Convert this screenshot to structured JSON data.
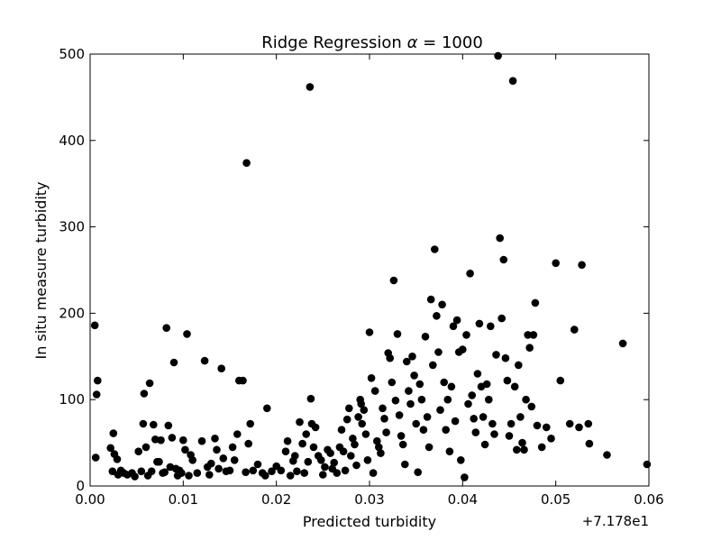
{
  "chart_data": {
    "type": "scatter",
    "title": "Ridge Regression α = 1000",
    "title_prefix": "Ridge Regression ",
    "title_alpha": "α",
    "title_suffix": " = 1000",
    "xlabel": "Predicted turbidity",
    "ylabel": "In situ measure turbidity",
    "x_offset_label": "+7.178e1",
    "xlim": [
      0.0,
      0.06
    ],
    "ylim": [
      0,
      500
    ],
    "x_ticks": [
      0.0,
      0.01,
      0.02,
      0.03,
      0.04,
      0.05,
      0.06
    ],
    "x_tick_labels": [
      "0.00",
      "0.01",
      "0.02",
      "0.03",
      "0.04",
      "0.05",
      "0.06"
    ],
    "y_ticks": [
      0,
      100,
      200,
      300,
      400,
      500
    ],
    "y_tick_labels": [
      "0",
      "100",
      "200",
      "300",
      "400",
      "500"
    ],
    "grid": false,
    "marker_color": "#000000",
    "points": [
      [
        0.0005,
        186
      ],
      [
        0.0008,
        122
      ],
      [
        0.0007,
        106
      ],
      [
        0.0006,
        33
      ],
      [
        0.0022,
        44
      ],
      [
        0.0025,
        61
      ],
      [
        0.0026,
        37
      ],
      [
        0.0029,
        31
      ],
      [
        0.0024,
        17
      ],
      [
        0.003,
        13
      ],
      [
        0.0033,
        18
      ],
      [
        0.0036,
        15
      ],
      [
        0.004,
        13
      ],
      [
        0.0045,
        15
      ],
      [
        0.0048,
        11
      ],
      [
        0.0052,
        40
      ],
      [
        0.0055,
        17
      ],
      [
        0.0057,
        72
      ],
      [
        0.0058,
        107
      ],
      [
        0.006,
        45
      ],
      [
        0.0062,
        12
      ],
      [
        0.0064,
        119
      ],
      [
        0.0066,
        17
      ],
      [
        0.0068,
        71
      ],
      [
        0.007,
        54
      ],
      [
        0.0072,
        28
      ],
      [
        0.0074,
        28
      ],
      [
        0.0076,
        53
      ],
      [
        0.0078,
        15
      ],
      [
        0.008,
        16
      ],
      [
        0.0082,
        183
      ],
      [
        0.0084,
        70
      ],
      [
        0.0086,
        22
      ],
      [
        0.0088,
        56
      ],
      [
        0.009,
        143
      ],
      [
        0.0092,
        20
      ],
      [
        0.0094,
        12
      ],
      [
        0.0096,
        18
      ],
      [
        0.0098,
        15
      ],
      [
        0.01,
        53
      ],
      [
        0.0102,
        42
      ],
      [
        0.0104,
        176
      ],
      [
        0.0106,
        12
      ],
      [
        0.0108,
        36
      ],
      [
        0.011,
        30
      ],
      [
        0.0115,
        15
      ],
      [
        0.012,
        52
      ],
      [
        0.0123,
        145
      ],
      [
        0.0126,
        22
      ],
      [
        0.0128,
        13
      ],
      [
        0.013,
        26
      ],
      [
        0.0134,
        55
      ],
      [
        0.0136,
        42
      ],
      [
        0.0138,
        20
      ],
      [
        0.0141,
        136
      ],
      [
        0.0143,
        32
      ],
      [
        0.0146,
        17
      ],
      [
        0.015,
        18
      ],
      [
        0.0153,
        45
      ],
      [
        0.0155,
        30
      ],
      [
        0.0158,
        60
      ],
      [
        0.016,
        122
      ],
      [
        0.0164,
        122
      ],
      [
        0.0167,
        16
      ],
      [
        0.0168,
        374
      ],
      [
        0.017,
        49
      ],
      [
        0.0172,
        72
      ],
      [
        0.0175,
        18
      ],
      [
        0.018,
        25
      ],
      [
        0.0185,
        15
      ],
      [
        0.0188,
        12
      ],
      [
        0.019,
        90
      ],
      [
        0.0195,
        17
      ],
      [
        0.02,
        23
      ],
      [
        0.0205,
        18
      ],
      [
        0.021,
        40
      ],
      [
        0.0212,
        52
      ],
      [
        0.0215,
        12
      ],
      [
        0.0218,
        29
      ],
      [
        0.022,
        35
      ],
      [
        0.0222,
        17
      ],
      [
        0.0225,
        74
      ],
      [
        0.0228,
        49
      ],
      [
        0.023,
        15
      ],
      [
        0.0232,
        60
      ],
      [
        0.0234,
        28
      ],
      [
        0.0236,
        462
      ],
      [
        0.0237,
        101
      ],
      [
        0.0238,
        72
      ],
      [
        0.024,
        45
      ],
      [
        0.0242,
        68
      ],
      [
        0.0245,
        35
      ],
      [
        0.0248,
        30
      ],
      [
        0.025,
        13
      ],
      [
        0.0252,
        22
      ],
      [
        0.0255,
        42
      ],
      [
        0.0258,
        38
      ],
      [
        0.026,
        20
      ],
      [
        0.0262,
        27
      ],
      [
        0.0265,
        15
      ],
      [
        0.0268,
        45
      ],
      [
        0.027,
        65
      ],
      [
        0.0272,
        40
      ],
      [
        0.0274,
        18
      ],
      [
        0.0276,
        77
      ],
      [
        0.0278,
        90
      ],
      [
        0.028,
        35
      ],
      [
        0.0282,
        55
      ],
      [
        0.0284,
        48
      ],
      [
        0.0286,
        24
      ],
      [
        0.0288,
        80
      ],
      [
        0.029,
        100
      ],
      [
        0.0291,
        95
      ],
      [
        0.0292,
        72
      ],
      [
        0.0294,
        88
      ],
      [
        0.0296,
        60
      ],
      [
        0.0298,
        30
      ],
      [
        0.03,
        178
      ],
      [
        0.0302,
        125
      ],
      [
        0.0304,
        15
      ],
      [
        0.0306,
        110
      ],
      [
        0.0308,
        52
      ],
      [
        0.031,
        45
      ],
      [
        0.0312,
        38
      ],
      [
        0.0314,
        90
      ],
      [
        0.0316,
        78
      ],
      [
        0.0318,
        62
      ],
      [
        0.032,
        154
      ],
      [
        0.0322,
        148
      ],
      [
        0.0324,
        120
      ],
      [
        0.0326,
        238
      ],
      [
        0.0328,
        99
      ],
      [
        0.033,
        176
      ],
      [
        0.0332,
        82
      ],
      [
        0.0334,
        58
      ],
      [
        0.0336,
        48
      ],
      [
        0.0338,
        25
      ],
      [
        0.034,
        144
      ],
      [
        0.0342,
        110
      ],
      [
        0.0344,
        95
      ],
      [
        0.0346,
        150
      ],
      [
        0.0348,
        128
      ],
      [
        0.035,
        72
      ],
      [
        0.0352,
        16
      ],
      [
        0.0354,
        118
      ],
      [
        0.0356,
        100
      ],
      [
        0.0358,
        65
      ],
      [
        0.036,
        173
      ],
      [
        0.0362,
        80
      ],
      [
        0.0364,
        45
      ],
      [
        0.0366,
        216
      ],
      [
        0.0368,
        140
      ],
      [
        0.037,
        274
      ],
      [
        0.0372,
        197
      ],
      [
        0.0374,
        155
      ],
      [
        0.0376,
        88
      ],
      [
        0.0378,
        210
      ],
      [
        0.038,
        120
      ],
      [
        0.0382,
        65
      ],
      [
        0.0384,
        100
      ],
      [
        0.0386,
        40
      ],
      [
        0.0388,
        115
      ],
      [
        0.039,
        185
      ],
      [
        0.0392,
        75
      ],
      [
        0.0394,
        192
      ],
      [
        0.0396,
        155
      ],
      [
        0.0398,
        30
      ],
      [
        0.04,
        158
      ],
      [
        0.0402,
        10
      ],
      [
        0.0404,
        175
      ],
      [
        0.0406,
        95
      ],
      [
        0.0408,
        246
      ],
      [
        0.041,
        105
      ],
      [
        0.0412,
        78
      ],
      [
        0.0414,
        62
      ],
      [
        0.0416,
        130
      ],
      [
        0.0418,
        188
      ],
      [
        0.042,
        115
      ],
      [
        0.0422,
        80
      ],
      [
        0.0424,
        48
      ],
      [
        0.0426,
        118
      ],
      [
        0.0428,
        100
      ],
      [
        0.043,
        185
      ],
      [
        0.0432,
        72
      ],
      [
        0.0434,
        60
      ],
      [
        0.0436,
        152
      ],
      [
        0.0438,
        498
      ],
      [
        0.044,
        287
      ],
      [
        0.0442,
        194
      ],
      [
        0.0444,
        262
      ],
      [
        0.0446,
        148
      ],
      [
        0.0448,
        122
      ],
      [
        0.045,
        58
      ],
      [
        0.0452,
        72
      ],
      [
        0.0454,
        469
      ],
      [
        0.0456,
        115
      ],
      [
        0.0458,
        42
      ],
      [
        0.046,
        140
      ],
      [
        0.0462,
        80
      ],
      [
        0.0464,
        50
      ],
      [
        0.0466,
        42
      ],
      [
        0.0468,
        100
      ],
      [
        0.047,
        175
      ],
      [
        0.0472,
        160
      ],
      [
        0.0474,
        92
      ],
      [
        0.0476,
        175
      ],
      [
        0.0478,
        212
      ],
      [
        0.048,
        70
      ],
      [
        0.0485,
        45
      ],
      [
        0.049,
        68
      ],
      [
        0.0495,
        55
      ],
      [
        0.05,
        258
      ],
      [
        0.0505,
        122
      ],
      [
        0.0515,
        72
      ],
      [
        0.052,
        181
      ],
      [
        0.0525,
        68
      ],
      [
        0.0528,
        256
      ],
      [
        0.0535,
        72
      ],
      [
        0.0536,
        49
      ],
      [
        0.0555,
        36
      ],
      [
        0.0572,
        165
      ],
      [
        0.0598,
        25
      ]
    ]
  }
}
